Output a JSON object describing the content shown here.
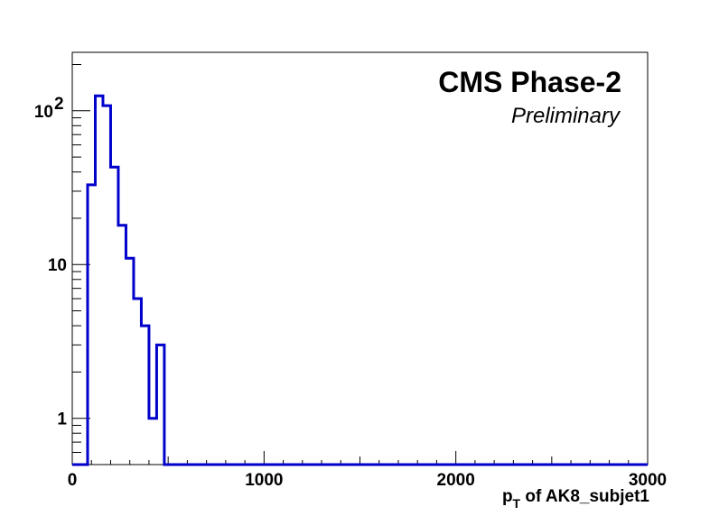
{
  "chart_data": {
    "type": "histogram",
    "title": "CMS Phase-2",
    "subtitle": "Preliminary",
    "xlabel_main": "p",
    "xlabel_sub": "T",
    "xlabel_rest": " of AK8_subjet1",
    "ylabel": "",
    "xlim": [
      0,
      3000
    ],
    "ylim": [
      0.5,
      240
    ],
    "yscale": "log",
    "grid": false,
    "line_color": "#0000cc",
    "x_ticks": [
      {
        "value": 0,
        "label": "0"
      },
      {
        "value": 1000,
        "label": "1000"
      },
      {
        "value": 2000,
        "label": "2000"
      },
      {
        "value": 3000,
        "label": "3000"
      }
    ],
    "y_ticks": [
      {
        "value": 1,
        "label": "1"
      },
      {
        "value": 10,
        "label": "10"
      },
      {
        "value": 100,
        "label": "10",
        "exponent": "2"
      }
    ],
    "bin_edges": [
      0,
      80,
      120,
      160,
      200,
      240,
      280,
      320,
      360,
      400,
      440,
      480,
      3000
    ],
    "bin_values": [
      0,
      33,
      125,
      108,
      43,
      18,
      11,
      6,
      4,
      1,
      3,
      0
    ]
  }
}
